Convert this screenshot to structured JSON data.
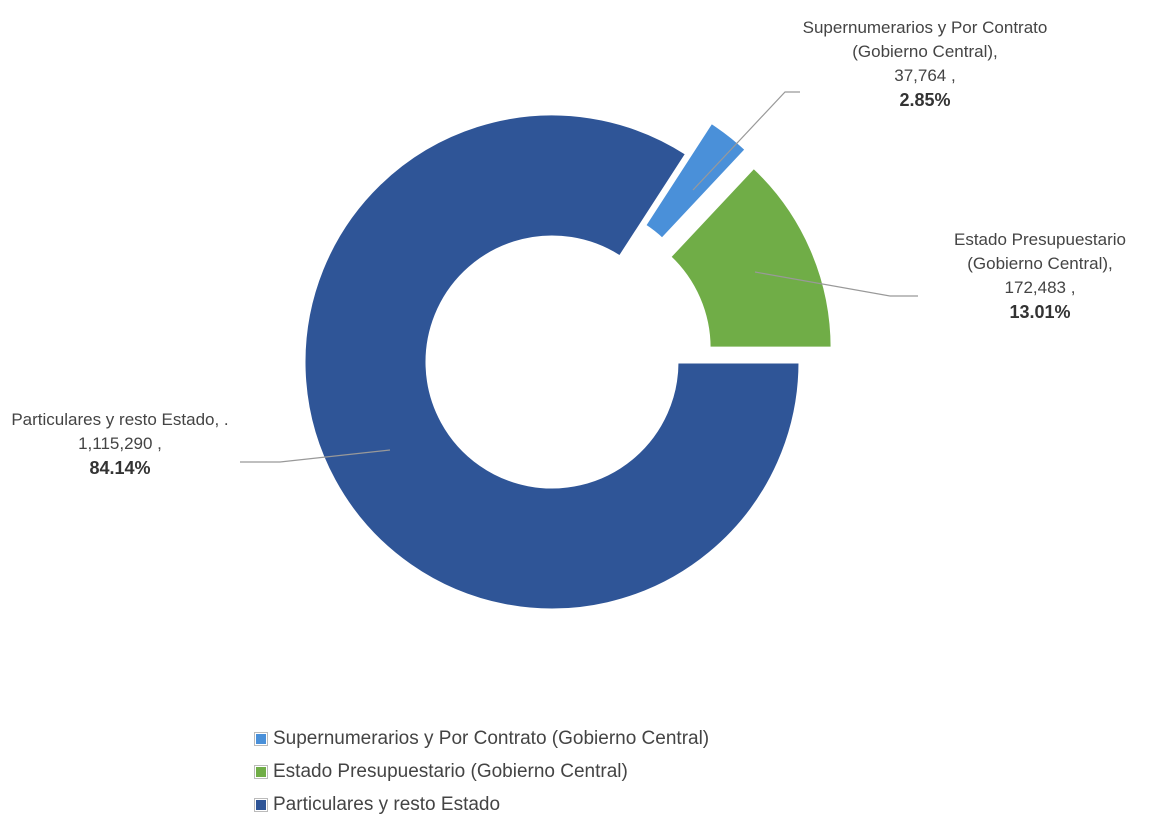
{
  "chart_data": {
    "type": "donut",
    "categories": [
      "Supernumerarios y Por Contrato (Gobierno Central)",
      "Estado Presupuestario (Gobierno Central)",
      "Particulares y resto Estado"
    ],
    "label_names": [
      "Supernumerarios y Por Contrato (Gobierno Central),",
      "Estado Presupuestario (Gobierno Central),",
      "Particulares y resto Estado, ."
    ],
    "values": [
      37764,
      172483,
      1115290
    ],
    "value_labels": [
      "37,764 ,",
      "172,483 ,",
      "1,115,290 ,"
    ],
    "percents": [
      2.85,
      13.01,
      84.14
    ],
    "percent_labels": [
      "2.85%",
      "13.01%",
      "84.14%"
    ],
    "colors": [
      "#4a90d9",
      "#70ad47",
      "#2f5597"
    ],
    "legend": "bottom"
  }
}
